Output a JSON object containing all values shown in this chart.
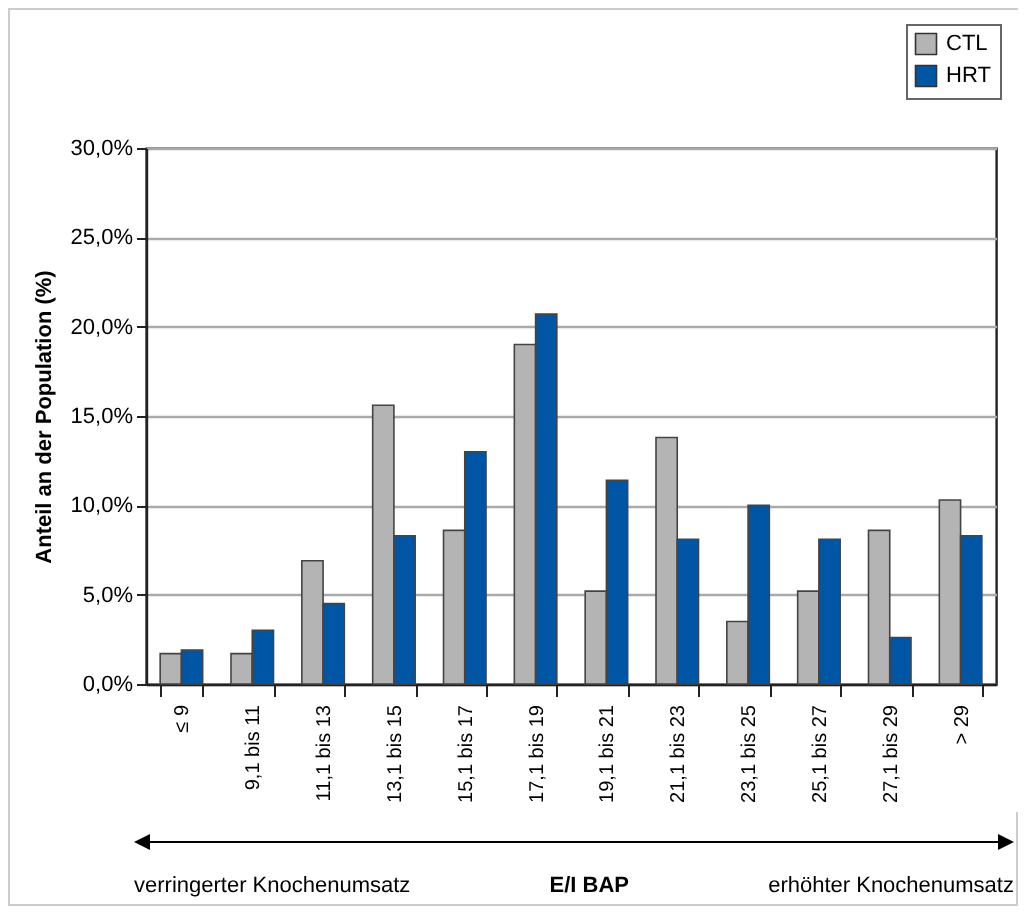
{
  "chart_data": {
    "type": "bar",
    "ylabel": "Anteil an der Population (%)",
    "xlabel": "E/I BAP",
    "annotations": [
      "verringerter Knochenumsatz",
      "erhöhter Knochenumsatz"
    ],
    "categories": [
      "≤ 9",
      "9,1 bis 11",
      "11,1 bis 13",
      "13,1 bis 15",
      "15,1 bis 17",
      "17,1 bis 19",
      "19,1 bis 21",
      "21,1 bis 23",
      "23,1 bis 25",
      "25,1 bis 27",
      "27,1 bis 29",
      "> 29"
    ],
    "series": [
      {
        "name": "CTL",
        "color": "#b4b4b4",
        "values": [
          1.7,
          1.7,
          6.9,
          15.6,
          8.6,
          19.0,
          5.2,
          13.8,
          3.5,
          5.2,
          8.6,
          10.3
        ]
      },
      {
        "name": "HRT",
        "color": "#0055a5",
        "values": [
          1.9,
          3.0,
          4.5,
          8.3,
          13.0,
          20.7,
          11.4,
          8.1,
          10.0,
          8.1,
          2.6,
          8.3
        ]
      }
    ],
    "ylim": [
      0,
      30
    ],
    "yticks": [
      {
        "value": 0,
        "label": "0,0%"
      },
      {
        "value": 5,
        "label": "5,0%"
      },
      {
        "value": 10,
        "label": "10,0%"
      },
      {
        "value": 15,
        "label": "15,0%"
      },
      {
        "value": 20,
        "label": "20,0%"
      },
      {
        "value": 25,
        "label": "25,0%"
      },
      {
        "value": 30,
        "label": "30,0%"
      }
    ],
    "grid": "y",
    "legend": "top right"
  }
}
